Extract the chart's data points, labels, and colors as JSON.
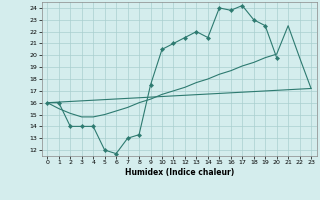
{
  "xlabel": "Humidex (Indice chaleur)",
  "background_color": "#d4eded",
  "grid_color": "#aacfcf",
  "line_color": "#2d7a70",
  "xlim": [
    -0.5,
    23.5
  ],
  "ylim": [
    11.5,
    24.5
  ],
  "xticks": [
    0,
    1,
    2,
    3,
    4,
    5,
    6,
    7,
    8,
    9,
    10,
    11,
    12,
    13,
    14,
    15,
    16,
    17,
    18,
    19,
    20,
    21,
    22,
    23
  ],
  "yticks": [
    12,
    13,
    14,
    15,
    16,
    17,
    18,
    19,
    20,
    21,
    22,
    23,
    24
  ],
  "line1_x": [
    0,
    1,
    2,
    3,
    4,
    5,
    6,
    7,
    8,
    9,
    10,
    11,
    12,
    13,
    14,
    15,
    16,
    17,
    18,
    19,
    20
  ],
  "line1_y": [
    16,
    16,
    14,
    14,
    14,
    12,
    11.7,
    13,
    13.3,
    17.5,
    20.5,
    21,
    21.5,
    22,
    21.5,
    24,
    23.8,
    24.2,
    23.0,
    22.5,
    19.8
  ],
  "line2_x": [
    0,
    23
  ],
  "line2_y": [
    16,
    17.2
  ],
  "line3_x": [
    0,
    1,
    2,
    3,
    4,
    5,
    6,
    7,
    8,
    9,
    10,
    11,
    12,
    13,
    14,
    15,
    16,
    17,
    18,
    19,
    20,
    21,
    22,
    23
  ],
  "line3_y": [
    16,
    15.5,
    15.1,
    14.8,
    14.8,
    15.0,
    15.3,
    15.6,
    16.0,
    16.3,
    16.7,
    17.0,
    17.3,
    17.7,
    18.0,
    18.4,
    18.7,
    19.1,
    19.4,
    19.8,
    20.1,
    22.5,
    19.8,
    17.2
  ]
}
